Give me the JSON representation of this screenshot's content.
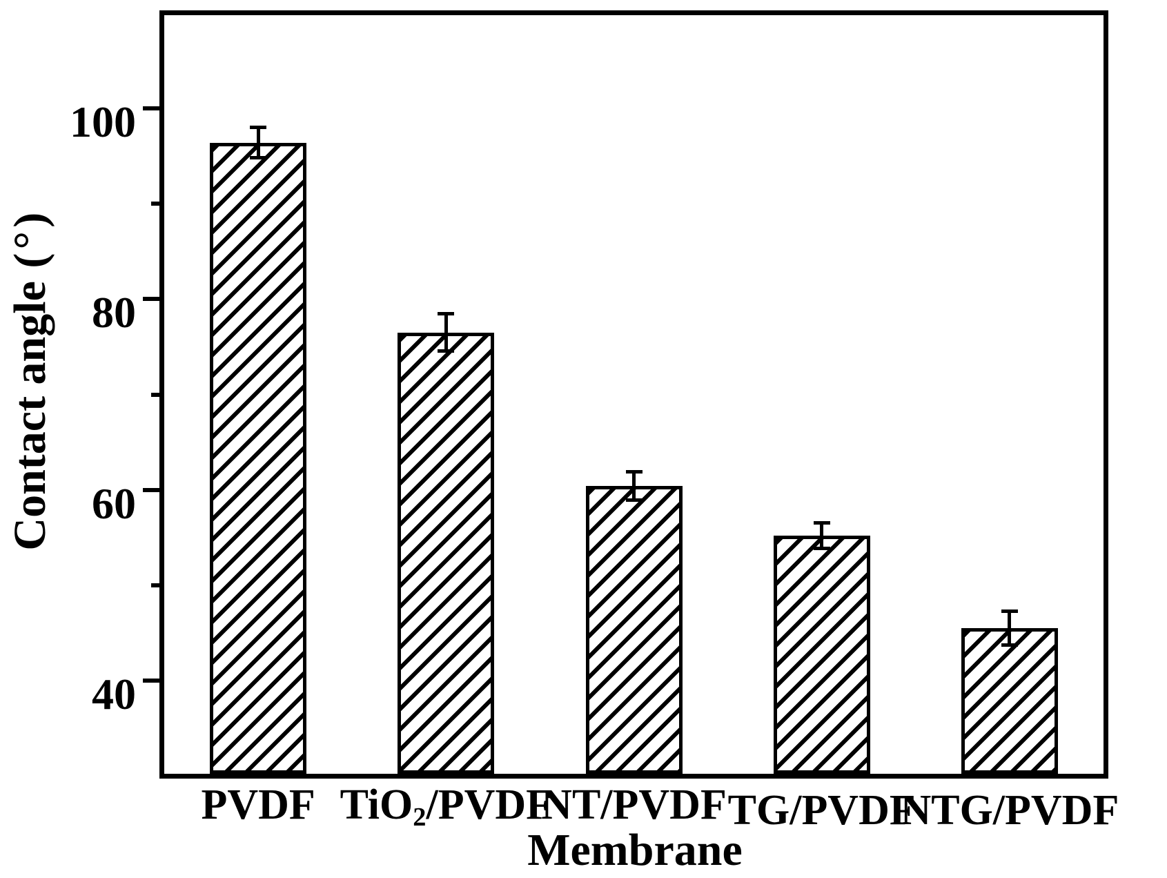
{
  "figure": {
    "background": "#ffffff",
    "ink_color": "#000000"
  },
  "y_axis": {
    "title": "Contact angle",
    "unit": "(°)",
    "tick_labels": [
      "100",
      "80",
      "60",
      "40"
    ]
  },
  "x_axis": {
    "title": "Membrane"
  },
  "chart_data": {
    "type": "bar",
    "title": "",
    "xlabel": "Membrane",
    "ylabel": "Contact angle (°)",
    "categories": [
      "PVDF",
      "TiO2/PVDF",
      "NT/PVDF",
      "TG/PVDF",
      "NTG/PVDF"
    ],
    "categories_rich": [
      [
        {
          "t": "PVDF"
        }
      ],
      [
        {
          "t": "TiO"
        },
        {
          "t": "2",
          "sub": true
        },
        {
          "t": "/PVDF"
        }
      ],
      [
        {
          "t": "NT/PVDF"
        }
      ],
      [
        {
          "t": "TG/PVDF"
        }
      ],
      [
        {
          "t": "NTG/PVDF"
        }
      ]
    ],
    "values": [
      96.4,
      76.5,
      60.4,
      55.2,
      45.5
    ],
    "errors": [
      1.6,
      2.0,
      1.5,
      1.4,
      1.8
    ],
    "ylim": [
      30,
      110
    ],
    "yticks_major": [
      100,
      80,
      60,
      40
    ],
    "yticks_minor": [
      90,
      70,
      50
    ],
    "grid": false,
    "legend": "none",
    "bar_style": {
      "fill": "#ffffff",
      "hatch": "diagonal-forward",
      "edge_color": "#000000"
    }
  }
}
